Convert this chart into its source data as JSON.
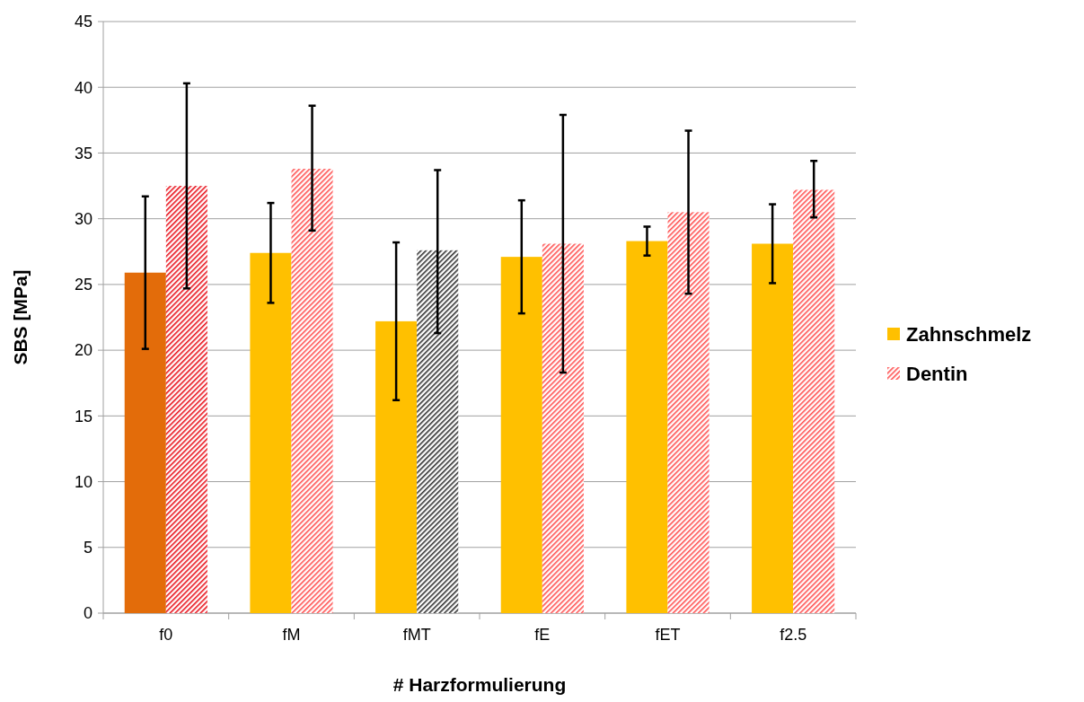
{
  "chart_data": {
    "type": "bar",
    "xlabel": "# Harzformulierung",
    "ylabel": "SBS [MPa]",
    "categories": [
      "f0",
      "fM",
      "fMT",
      "fE",
      "fET",
      "f2.5"
    ],
    "series": [
      {
        "name": "Zahnschmelz",
        "color": "#ffc000",
        "colors": [
          "#e36c0a",
          "#ffc000",
          "#ffc000",
          "#ffc000",
          "#ffc000",
          "#ffc000"
        ],
        "values": [
          25.9,
          27.4,
          22.2,
          27.1,
          28.3,
          28.1
        ],
        "errors": [
          [
            20.1,
            31.7
          ],
          [
            23.6,
            31.2
          ],
          [
            16.2,
            28.2
          ],
          [
            22.8,
            31.4
          ],
          [
            27.2,
            29.4
          ],
          [
            25.1,
            31.1
          ]
        ]
      },
      {
        "name": "Dentin",
        "color": "#ff5050",
        "colors": [
          "#e8101a",
          "#ff5050",
          "#303030",
          "#ff5050",
          "#ff5050",
          "#ff5050"
        ],
        "values": [
          32.5,
          33.8,
          27.6,
          28.1,
          30.5,
          32.2
        ],
        "errors": [
          [
            24.7,
            40.3
          ],
          [
            29.1,
            38.6
          ],
          [
            21.3,
            33.7
          ],
          [
            18.3,
            37.9
          ],
          [
            24.3,
            36.7
          ],
          [
            30.1,
            34.4
          ]
        ]
      }
    ],
    "ylim": [
      0,
      45
    ],
    "yticks": [
      0,
      5,
      10,
      15,
      20,
      25,
      30,
      35,
      40,
      45
    ],
    "grid": "y",
    "legend": "right"
  }
}
